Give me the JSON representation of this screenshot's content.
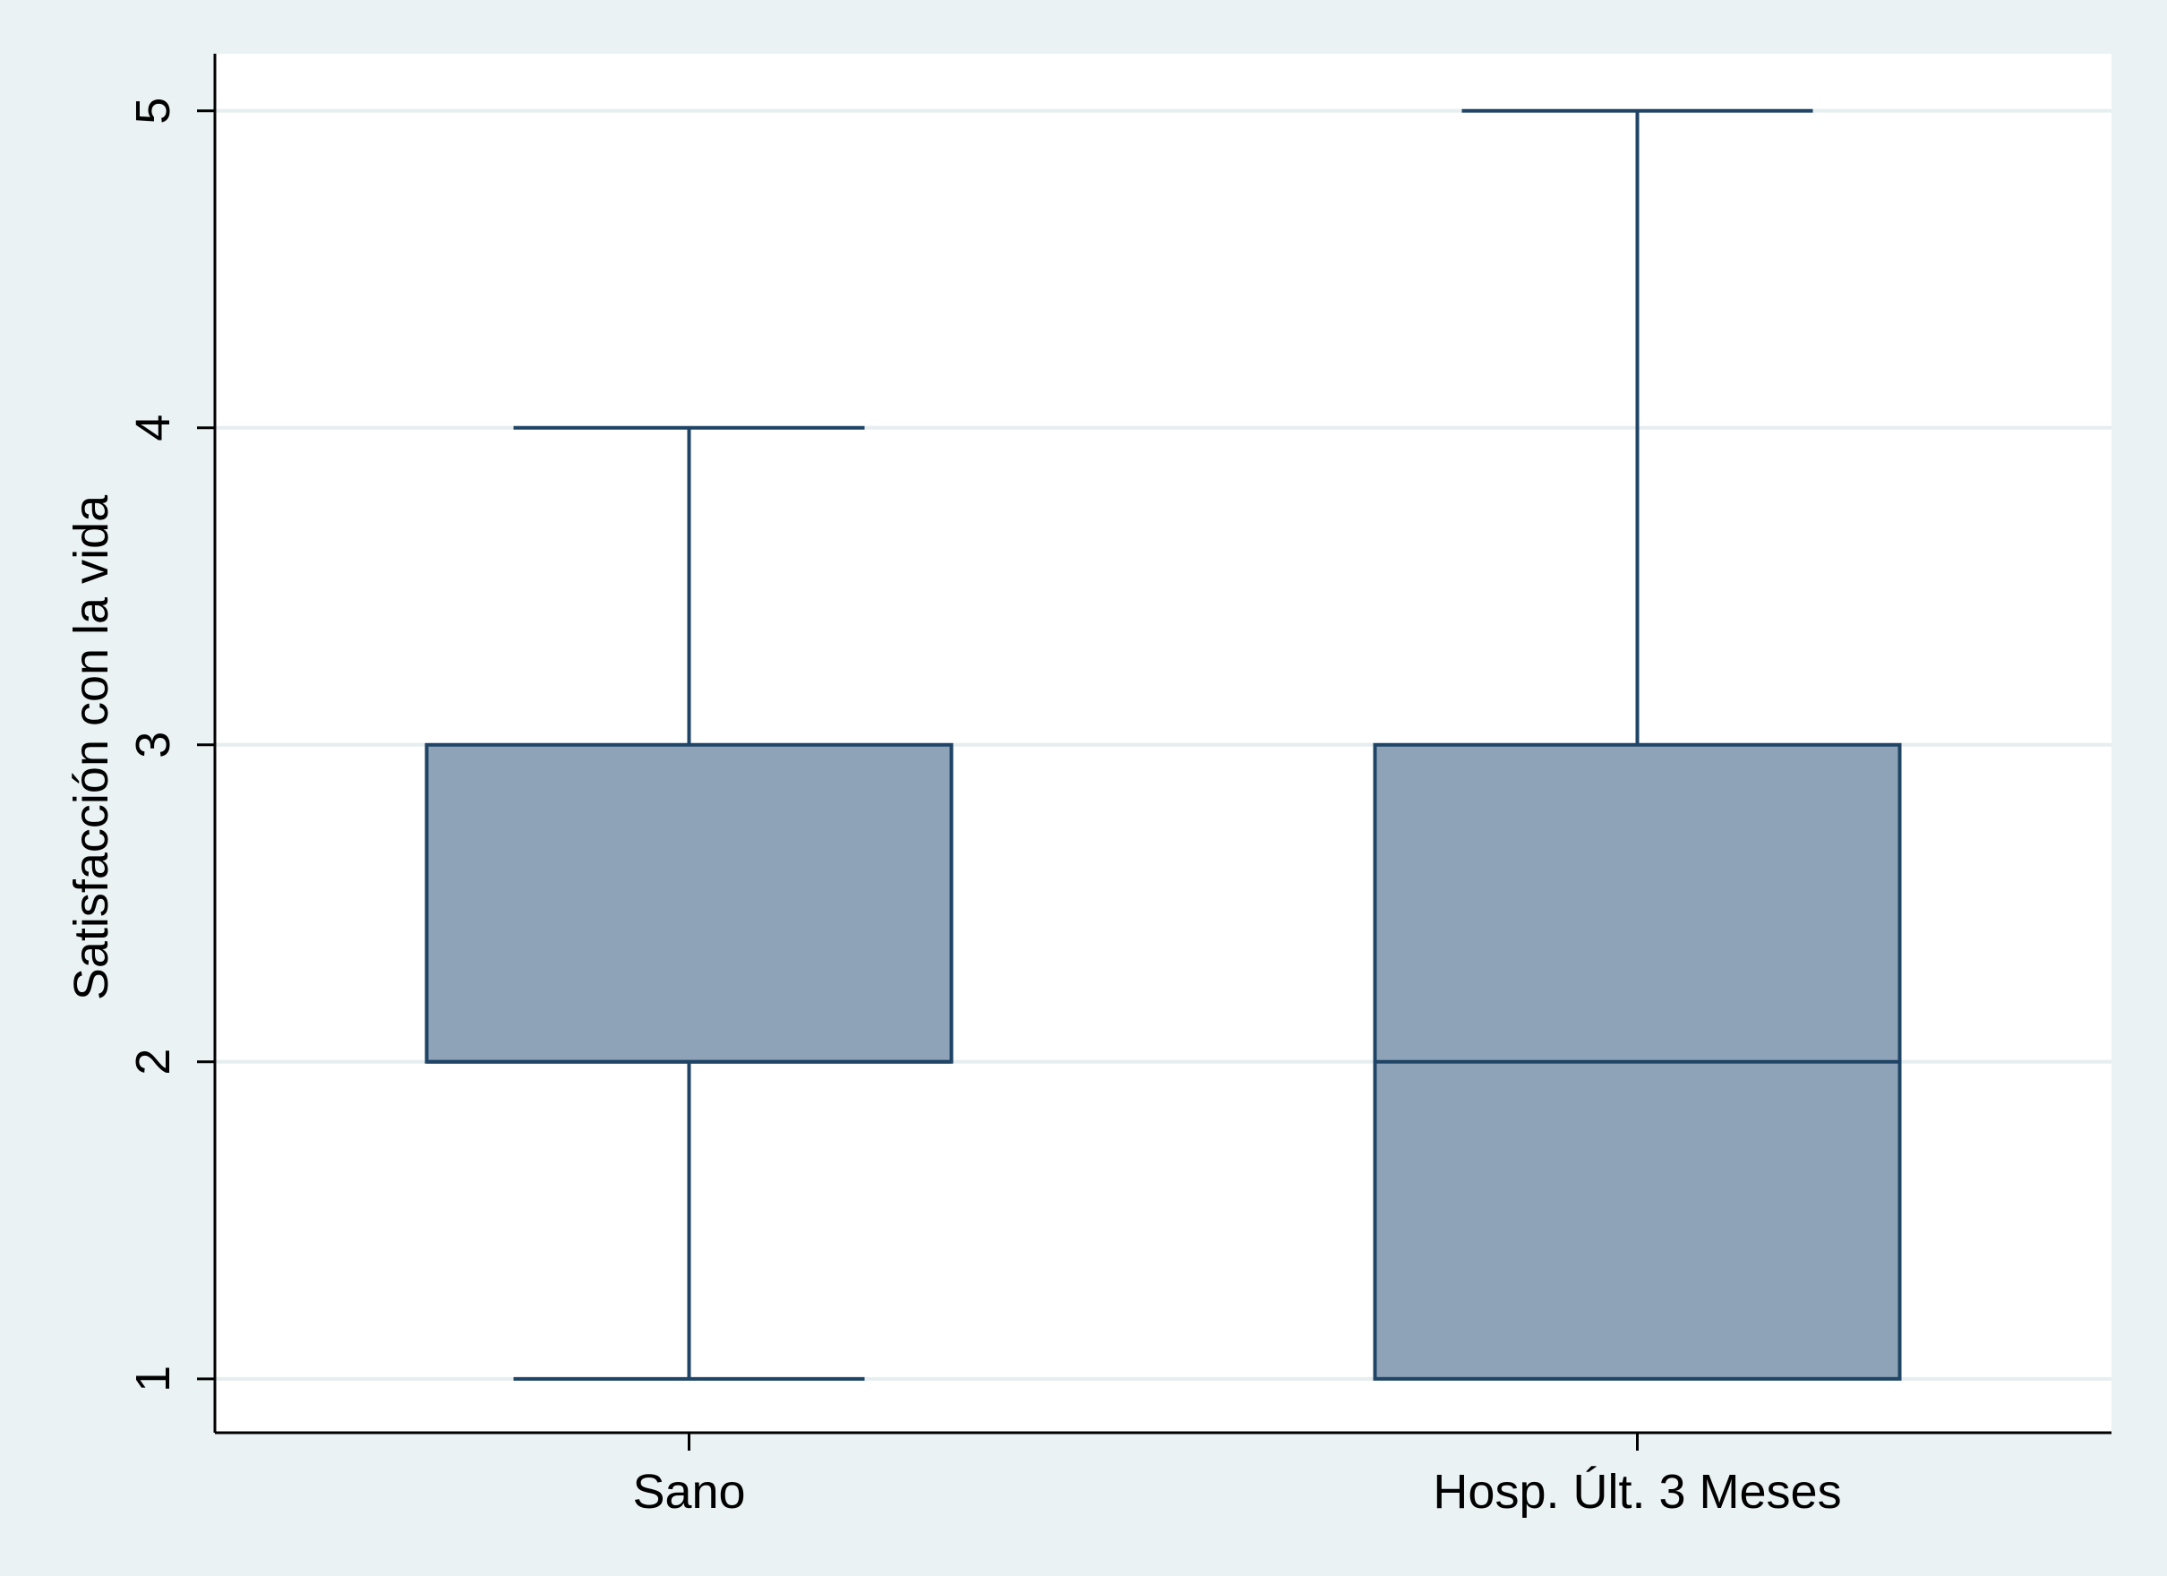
{
  "chart_data": {
    "type": "box",
    "title": "",
    "xlabel": "",
    "ylabel": "Satisfacción con la vida",
    "ylim": [
      0.83,
      5.18
    ],
    "yticks": [
      1,
      2,
      3,
      4,
      5
    ],
    "grid": true,
    "legend": "none",
    "categories": [
      "Sano",
      "Hosp. Últ. 3 Meses"
    ],
    "boxes": [
      {
        "category": "Sano",
        "whisker_low": 1,
        "q1": 2,
        "median": 2,
        "q3": 3,
        "whisker_high": 4
      },
      {
        "category": "Hosp. Últ. 3 Meses",
        "whisker_low": 1,
        "q1": 1,
        "median": 2,
        "q3": 3,
        "whisker_high": 5
      }
    ],
    "colors": {
      "box_fill": "#8ea3b8",
      "box_stroke": "#1f4466",
      "grid": "#e6eeef",
      "outer_background": "#eaf2f3",
      "plot_background": "#ffffff",
      "axis": "#000000"
    }
  }
}
